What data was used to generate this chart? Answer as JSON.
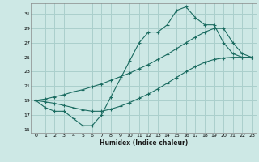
{
  "title": "",
  "xlabel": "Humidex (Indice chaleur)",
  "bg_color": "#cde8e5",
  "grid_color": "#aacfcc",
  "line_color": "#1a6b60",
  "xlim": [
    -0.5,
    23.5
  ],
  "ylim": [
    14.5,
    32.5
  ],
  "xticks": [
    0,
    1,
    2,
    3,
    4,
    5,
    6,
    7,
    8,
    9,
    10,
    11,
    12,
    13,
    14,
    15,
    16,
    17,
    18,
    19,
    20,
    21,
    22,
    23
  ],
  "yticks": [
    15,
    17,
    19,
    21,
    23,
    25,
    27,
    29,
    31
  ],
  "series1_x": [
    0,
    1,
    2,
    3,
    4,
    5,
    6,
    7,
    8,
    9,
    10,
    11,
    12,
    13,
    14,
    15,
    16,
    17,
    18,
    19,
    20,
    21,
    22,
    23
  ],
  "series1_y": [
    19.0,
    18.0,
    17.5,
    17.5,
    16.5,
    15.5,
    15.5,
    17.0,
    19.5,
    22.0,
    24.5,
    27.0,
    28.5,
    28.5,
    29.5,
    31.5,
    32.0,
    30.5,
    29.5,
    29.5,
    27.0,
    25.5,
    25.0,
    25.0
  ],
  "series2_x": [
    0,
    1,
    2,
    3,
    4,
    5,
    6,
    7,
    8,
    9,
    10,
    11,
    12,
    13,
    14,
    15,
    16,
    17,
    18,
    19,
    20,
    21,
    22,
    23
  ],
  "series2_y": [
    19.0,
    19.2,
    19.5,
    19.8,
    20.2,
    20.5,
    20.9,
    21.3,
    21.8,
    22.3,
    22.8,
    23.4,
    24.0,
    24.7,
    25.4,
    26.2,
    27.0,
    27.8,
    28.5,
    29.0,
    29.0,
    27.0,
    25.5,
    25.0
  ],
  "series3_x": [
    0,
    1,
    2,
    3,
    4,
    5,
    6,
    7,
    8,
    9,
    10,
    11,
    12,
    13,
    14,
    15,
    16,
    17,
    18,
    19,
    20,
    21,
    22,
    23
  ],
  "series3_y": [
    19.0,
    18.8,
    18.6,
    18.3,
    18.0,
    17.7,
    17.5,
    17.5,
    17.8,
    18.2,
    18.7,
    19.3,
    19.9,
    20.6,
    21.4,
    22.2,
    23.0,
    23.7,
    24.3,
    24.7,
    24.9,
    25.0,
    25.0,
    25.0
  ]
}
